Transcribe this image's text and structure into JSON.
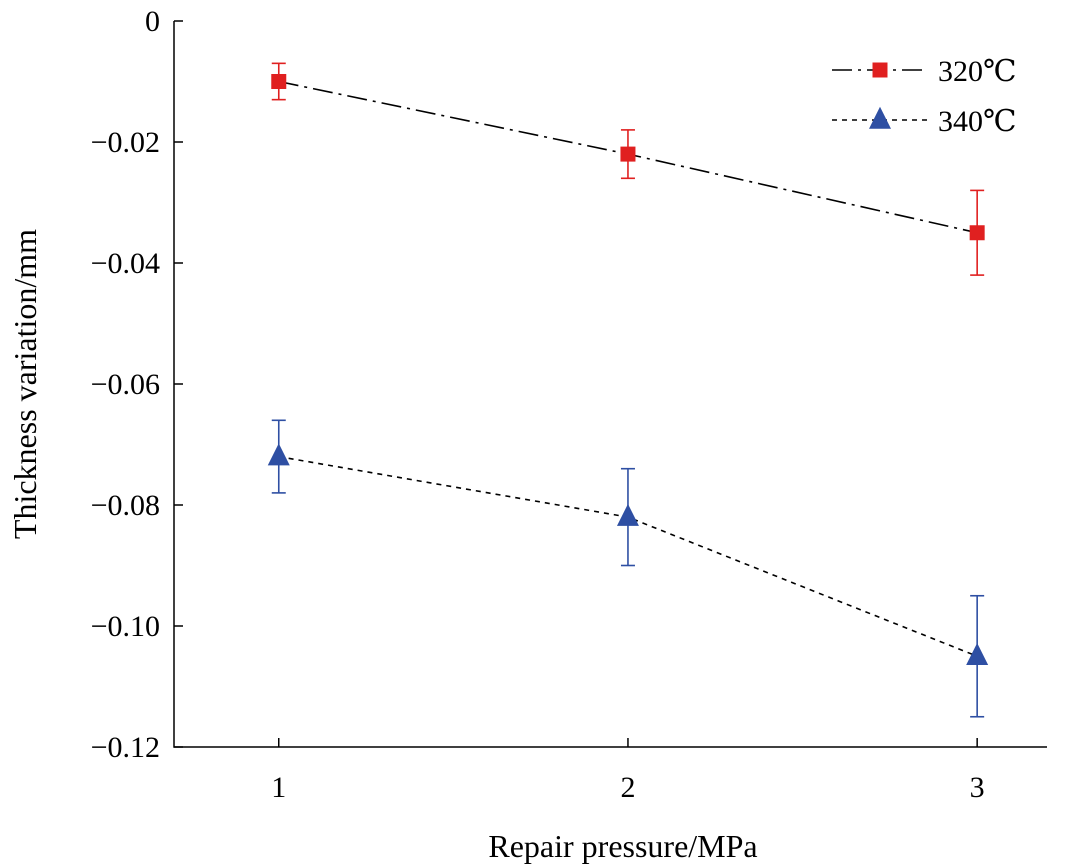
{
  "chart_data": {
    "type": "line",
    "title": "",
    "xlabel": "Repair pressure/MPa",
    "ylabel": "Thickness variation/mm",
    "x": [
      1,
      2,
      3
    ],
    "xlim": [
      0.7,
      3.2
    ],
    "ylim": [
      -0.12,
      0
    ],
    "x_ticks": [
      {
        "value": 1,
        "label": "1"
      },
      {
        "value": 2,
        "label": "2"
      },
      {
        "value": 3,
        "label": "3"
      }
    ],
    "y_ticks": [
      {
        "value": 0,
        "label": "0"
      },
      {
        "value": -0.02,
        "label": "−0.02"
      },
      {
        "value": -0.04,
        "label": "−0.04"
      },
      {
        "value": -0.06,
        "label": "−0.06"
      },
      {
        "value": -0.08,
        "label": "−0.08"
      },
      {
        "value": -0.1,
        "label": "−0.10"
      },
      {
        "value": -0.12,
        "label": "−0.12"
      }
    ],
    "grid": false,
    "legend_position": "top-right",
    "series": [
      {
        "name": "320℃",
        "marker": "square",
        "line_style": "dash-dot",
        "color": "#e02020",
        "line_color": "#000000",
        "values": [
          -0.01,
          -0.022,
          -0.035
        ],
        "error_low": [
          -0.013,
          -0.026,
          -0.042
        ],
        "error_high": [
          -0.007,
          -0.018,
          -0.028
        ]
      },
      {
        "name": "340℃",
        "marker": "triangle",
        "line_style": "dashed",
        "color": "#2e4fa3",
        "line_color": "#000000",
        "values": [
          -0.072,
          -0.082,
          -0.105
        ],
        "error_low": [
          -0.078,
          -0.09,
          -0.115
        ],
        "error_high": [
          -0.066,
          -0.074,
          -0.095
        ]
      }
    ]
  }
}
